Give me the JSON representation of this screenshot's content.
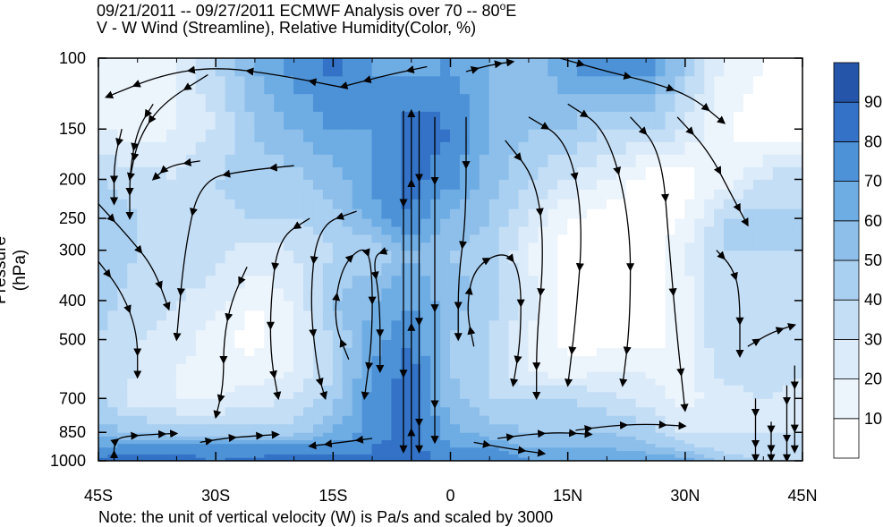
{
  "title_line1": "09/21/2011 -- 09/27/2011     ECMWF Analysis over 70 -- 80",
  "title_line1_sup": "o",
  "title_line1_end": "E",
  "title_line2": "V - W Wind (Streamline), Relative Humidity(Color, %)",
  "footnote": "Note: the unit of vertical velocity (W) is Pa/s and scaled by 3000",
  "chart_data": {
    "type": "heatmap",
    "title": "09/21/2011 -- 09/27/2011     ECMWF Analysis over 70 -- 80°E",
    "subtitle": "V - W Wind (Streamline), Relative Humidity(Color, %)",
    "xlabel": "",
    "ylabel": "Pressure (hPa)",
    "x_ticks": [
      {
        "value": -45,
        "label": "45S"
      },
      {
        "value": -30,
        "label": "30S"
      },
      {
        "value": -15,
        "label": "15S"
      },
      {
        "value": 0,
        "label": "0"
      },
      {
        "value": 15,
        "label": "15N"
      },
      {
        "value": 30,
        "label": "30N"
      },
      {
        "value": 45,
        "label": "45N"
      }
    ],
    "xlim": [
      -45,
      45
    ],
    "y_scale": "log",
    "ylim": [
      1000,
      100
    ],
    "y_ticks": [
      1000,
      850,
      700,
      500,
      400,
      300,
      250,
      200,
      150,
      100
    ],
    "colorbar": {
      "levels": [
        10,
        20,
        30,
        40,
        50,
        60,
        70,
        80,
        90
      ],
      "labels": [
        "10",
        "20",
        "30",
        "40",
        "50",
        "60",
        "70",
        "80",
        "90"
      ],
      "colors": [
        "#ffffff",
        "#ecf4fc",
        "#dbebf9",
        "#c4def6",
        "#a9cff1",
        "#8dbfea",
        "#6eace4",
        "#4d92d7",
        "#3372c6",
        "#2555a9"
      ]
    },
    "rh_field": {
      "x": [
        -45,
        -40,
        -35,
        -30,
        -25,
        -20,
        -15,
        -10,
        -5,
        0,
        5,
        10,
        15,
        20,
        25,
        30,
        35,
        40,
        45
      ],
      "p": [
        1000,
        925,
        850,
        700,
        600,
        500,
        400,
        300,
        250,
        200,
        150,
        100
      ],
      "rh": [
        [
          85,
          85,
          85,
          80,
          82,
          85,
          85,
          80,
          85,
          75,
          80,
          70,
          70,
          70,
          70,
          65,
          45,
          40,
          40
        ],
        [
          70,
          75,
          75,
          75,
          75,
          75,
          75,
          80,
          85,
          70,
          70,
          60,
          60,
          60,
          55,
          45,
          35,
          35,
          35
        ],
        [
          55,
          50,
          45,
          45,
          45,
          45,
          60,
          75,
          85,
          65,
          55,
          50,
          50,
          50,
          45,
          30,
          30,
          30,
          30
        ],
        [
          40,
          25,
          20,
          20,
          25,
          30,
          45,
          75,
          85,
          55,
          40,
          40,
          40,
          35,
          25,
          15,
          25,
          30,
          25
        ],
        [
          40,
          30,
          20,
          15,
          15,
          20,
          40,
          70,
          85,
          50,
          40,
          20,
          15,
          20,
          20,
          15,
          35,
          35,
          30
        ],
        [
          40,
          30,
          25,
          15,
          5,
          20,
          40,
          65,
          80,
          50,
          40,
          20,
          5,
          5,
          5,
          15,
          40,
          35,
          30
        ],
        [
          45,
          35,
          30,
          25,
          10,
          20,
          50,
          60,
          70,
          55,
          45,
          25,
          5,
          5,
          5,
          15,
          40,
          35,
          35
        ],
        [
          50,
          40,
          40,
          35,
          25,
          30,
          40,
          40,
          60,
          50,
          45,
          20,
          5,
          0,
          0,
          20,
          40,
          40,
          40
        ],
        [
          50,
          40,
          35,
          35,
          40,
          40,
          45,
          65,
          80,
          55,
          50,
          30,
          10,
          5,
          5,
          10,
          40,
          45,
          40
        ],
        [
          40,
          35,
          30,
          40,
          45,
          45,
          55,
          70,
          85,
          75,
          55,
          40,
          30,
          20,
          5,
          5,
          15,
          30,
          40
        ],
        [
          20,
          15,
          20,
          30,
          50,
          60,
          70,
          70,
          85,
          80,
          60,
          50,
          50,
          40,
          40,
          30,
          10,
          5,
          5
        ],
        [
          10,
          10,
          20,
          40,
          60,
          75,
          85,
          70,
          65,
          70,
          60,
          55,
          70,
          85,
          80,
          50,
          20,
          10,
          5
        ]
      ]
    },
    "streamlines": [
      {
        "pts": [
          [
            -43,
            1000
          ],
          [
            -43,
            900
          ],
          [
            -42,
            870
          ],
          [
            -38,
            860
          ],
          [
            -35,
            855
          ]
        ]
      },
      {
        "pts": [
          [
            -32,
            900
          ],
          [
            -29,
            880
          ],
          [
            -26,
            870
          ],
          [
            -22,
            860
          ]
        ]
      },
      {
        "pts": [
          [
            -10,
            880
          ],
          [
            -14,
            900
          ],
          [
            -18,
            920
          ]
        ]
      },
      {
        "pts": [
          [
            -45,
            320
          ],
          [
            -42,
            380
          ],
          [
            -40,
            480
          ],
          [
            -40,
            620
          ]
        ]
      },
      {
        "pts": [
          [
            -45,
            230
          ],
          [
            -41,
            280
          ],
          [
            -38,
            330
          ],
          [
            -36,
            420
          ]
        ]
      },
      {
        "pts": [
          [
            -42,
            150
          ],
          [
            -43,
            180
          ],
          [
            -43,
            230
          ]
        ]
      },
      {
        "pts": [
          [
            -38,
            130
          ],
          [
            -40,
            150
          ],
          [
            -41,
            190
          ],
          [
            -41,
            250
          ]
        ]
      },
      {
        "pts": [
          [
            -31,
            110
          ],
          [
            -37,
            130
          ],
          [
            -40,
            160
          ],
          [
            -41,
            200
          ]
        ]
      },
      {
        "pts": [
          [
            -32,
            180
          ],
          [
            -36,
            185
          ],
          [
            -38,
            200
          ]
        ]
      },
      {
        "pts": [
          [
            -20,
            185
          ],
          [
            -26,
            190
          ],
          [
            -32,
            200
          ],
          [
            -34,
            300
          ],
          [
            -35,
            500
          ]
        ]
      },
      {
        "pts": [
          [
            -26,
            330
          ],
          [
            -28,
            400
          ],
          [
            -29,
            500
          ],
          [
            -29,
            650
          ],
          [
            -30,
            780
          ]
        ]
      },
      {
        "pts": [
          [
            -18,
            250
          ],
          [
            -22,
            280
          ],
          [
            -23,
            400
          ],
          [
            -23,
            550
          ],
          [
            -22,
            700
          ]
        ]
      },
      {
        "pts": [
          [
            -12,
            240
          ],
          [
            -17,
            260
          ],
          [
            -18,
            400
          ],
          [
            -17,
            600
          ],
          [
            -16,
            700
          ]
        ]
      },
      {
        "pts": [
          [
            -13,
            560
          ],
          [
            -15,
            450
          ],
          [
            -14,
            330
          ],
          [
            -11,
            290
          ],
          [
            -10,
            330
          ],
          [
            -10,
            500
          ],
          [
            -11,
            700
          ]
        ]
      },
      {
        "pts": [
          [
            -8,
            300
          ],
          [
            -10,
            310
          ],
          [
            -9,
            400
          ],
          [
            -9,
            600
          ]
        ]
      },
      {
        "pts": [
          [
            -14,
            118
          ],
          [
            -22,
            110
          ],
          [
            -30,
            105
          ],
          [
            -37,
            110
          ],
          [
            -44,
            125
          ]
        ]
      },
      {
        "pts": [
          [
            -3,
            105
          ],
          [
            -8,
            110
          ],
          [
            -14,
            118
          ]
        ]
      },
      {
        "pts": [
          [
            -4,
            135
          ],
          [
            -4,
            300
          ],
          [
            -4,
            700
          ],
          [
            -4,
            950
          ]
        ]
      },
      {
        "pts": [
          [
            -6,
            135
          ],
          [
            -6,
            400
          ],
          [
            -6,
            950
          ]
        ]
      },
      {
        "pts": [
          [
            -5,
            1000
          ],
          [
            -5,
            700
          ],
          [
            -5,
            300
          ],
          [
            -5,
            135
          ]
        ]
      },
      {
        "pts": [
          [
            -2,
            140
          ],
          [
            -2,
            300
          ],
          [
            -2,
            600
          ],
          [
            -2,
            900
          ]
        ]
      },
      {
        "pts": [
          [
            2,
            140
          ],
          [
            2,
            250
          ],
          [
            1,
            350
          ],
          [
            1,
            500
          ]
        ]
      },
      {
        "pts": [
          [
            3,
            520
          ],
          [
            2,
            420
          ],
          [
            3,
            330
          ],
          [
            7,
            300
          ],
          [
            9,
            340
          ],
          [
            9,
            500
          ],
          [
            8,
            650
          ]
        ]
      },
      {
        "pts": [
          [
            7,
            160
          ],
          [
            11,
            200
          ],
          [
            12,
            300
          ],
          [
            11,
            500
          ],
          [
            11,
            700
          ]
        ]
      },
      {
        "pts": [
          [
            10,
            140
          ],
          [
            15,
            160
          ],
          [
            17,
            250
          ],
          [
            16,
            450
          ],
          [
            15,
            650
          ]
        ]
      },
      {
        "pts": [
          [
            15,
            130
          ],
          [
            20,
            150
          ],
          [
            23,
            250
          ],
          [
            23,
            450
          ],
          [
            22,
            650
          ]
        ]
      },
      {
        "pts": [
          [
            23,
            140
          ],
          [
            27,
            170
          ],
          [
            28,
            300
          ],
          [
            29,
            500
          ],
          [
            30,
            750
          ]
        ]
      },
      {
        "pts": [
          [
            2,
            108
          ],
          [
            5,
            104
          ],
          [
            8,
            102
          ]
        ]
      },
      {
        "pts": [
          [
            14,
            100
          ],
          [
            20,
            108
          ],
          [
            26,
            115
          ],
          [
            31,
            125
          ],
          [
            35,
            145
          ]
        ]
      },
      {
        "pts": [
          [
            29,
            140
          ],
          [
            33,
            170
          ],
          [
            36,
            220
          ],
          [
            38,
            260
          ]
        ]
      },
      {
        "pts": [
          [
            34,
            300
          ],
          [
            36,
            330
          ],
          [
            37,
            380
          ],
          [
            37,
            550
          ]
        ]
      },
      {
        "pts": [
          [
            38,
            520
          ],
          [
            41,
            480
          ],
          [
            44,
            460
          ]
        ]
      },
      {
        "pts": [
          [
            39,
            700
          ],
          [
            39,
            850
          ],
          [
            39,
            1000
          ]
        ]
      },
      {
        "pts": [
          [
            41,
            800
          ],
          [
            41,
            900
          ],
          [
            41,
            1000
          ]
        ]
      },
      {
        "pts": [
          [
            43,
            650
          ],
          [
            43,
            800
          ],
          [
            43,
            1000
          ]
        ]
      },
      {
        "pts": [
          [
            44,
            580
          ],
          [
            44,
            750
          ],
          [
            44,
            950
          ]
        ]
      },
      {
        "pts": [
          [
            16,
            840
          ],
          [
            20,
            820
          ],
          [
            25,
            810
          ],
          [
            30,
            820
          ]
        ]
      },
      {
        "pts": [
          [
            6,
            880
          ],
          [
            10,
            860
          ],
          [
            14,
            850
          ],
          [
            18,
            860
          ]
        ]
      },
      {
        "pts": [
          [
            3,
            900
          ],
          [
            7,
            930
          ],
          [
            12,
            960
          ]
        ]
      }
    ]
  }
}
